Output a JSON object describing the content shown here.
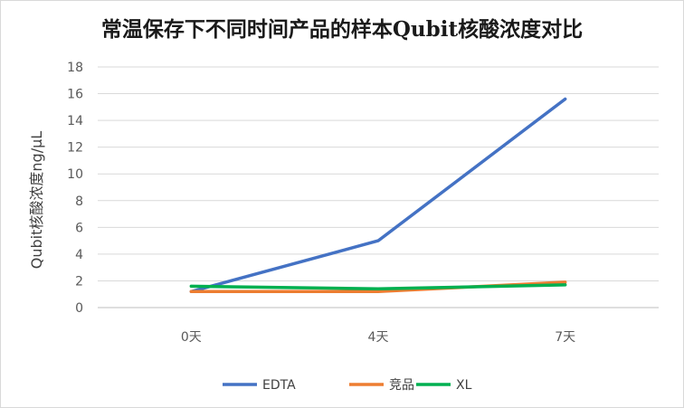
{
  "chart_data": {
    "type": "line",
    "title": "常温保存下不同时间产品的样本Qubit核酸浓度对比",
    "xlabel": "",
    "ylabel": "Qubit核酸浓度ng/μL",
    "categories": [
      "0天",
      "4天",
      "7天"
    ],
    "ylim": [
      0,
      18
    ],
    "yticks": [
      0,
      2,
      4,
      6,
      8,
      10,
      12,
      14,
      16,
      18
    ],
    "grid": true,
    "legend_position": "bottom",
    "series": [
      {
        "name": "EDTA",
        "values": [
          1.2,
          5.0,
          15.6
        ],
        "color": "#4472C4"
      },
      {
        "name": "竞品",
        "values": [
          1.2,
          1.2,
          1.9
        ],
        "color": "#ED7D31"
      },
      {
        "name": "XL",
        "values": [
          1.6,
          1.4,
          1.7
        ],
        "color": "#00B050"
      }
    ]
  }
}
